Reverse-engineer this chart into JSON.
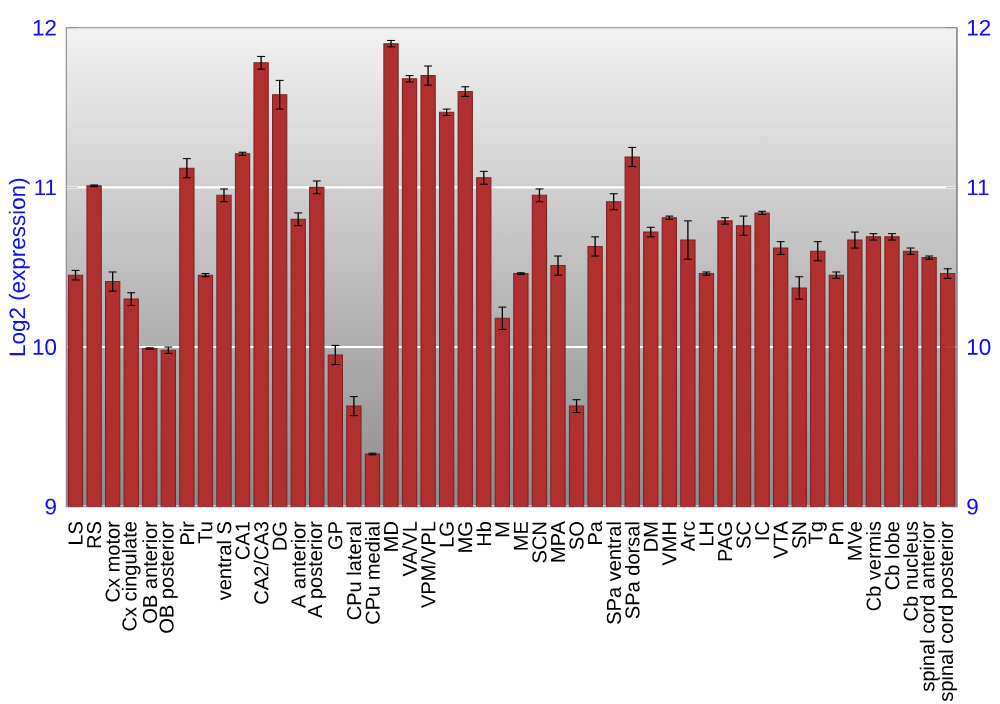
{
  "chart_data": {
    "type": "bar",
    "ylabel": "Log2 (expression)",
    "categories": [
      "LS",
      "RS",
      "Cx motor",
      "Cx cingulate",
      "OB anterior",
      "OB posterior",
      "Pir",
      "Tu",
      "ventral S",
      "CA1",
      "CA2/CA3",
      "DG",
      "A anterior",
      "A posterior",
      "GP",
      "CPu lateral",
      "CPu medial",
      "MD",
      "VA/VL",
      "VPM/VPL",
      "LG",
      "MG",
      "Hb",
      "M",
      "ME",
      "SCN",
      "MPA",
      "SO",
      "Pa",
      "SPa ventral",
      "SPa dorsal",
      "DM",
      "VMH",
      "Arc",
      "LH",
      "PAG",
      "SC",
      "IC",
      "VTA",
      "SN",
      "Tg",
      "Pn",
      "MVe",
      "Cb vermis",
      "Cb lobe",
      "Cb nucleus",
      "spinal cord anterior",
      "spinal cord posterior"
    ],
    "values": [
      10.45,
      11.01,
      10.41,
      10.3,
      9.99,
      9.98,
      11.12,
      10.45,
      10.95,
      11.21,
      11.78,
      11.58,
      10.8,
      11.0,
      9.95,
      9.63,
      9.33,
      11.9,
      11.68,
      11.7,
      11.47,
      11.6,
      11.06,
      10.18,
      10.46,
      10.95,
      10.51,
      9.63,
      10.63,
      10.91,
      11.19,
      10.72,
      10.81,
      10.67,
      10.46,
      10.79,
      10.76,
      10.84,
      10.62,
      10.37,
      10.6,
      10.45,
      10.67,
      10.69,
      10.69,
      10.6,
      10.56,
      10.46
    ],
    "errors": [
      0.03,
      0.005,
      0.06,
      0.04,
      0.005,
      0.02,
      0.06,
      0.01,
      0.04,
      0.01,
      0.04,
      0.09,
      0.04,
      0.04,
      0.06,
      0.06,
      0.005,
      0.02,
      0.02,
      0.06,
      0.02,
      0.03,
      0.04,
      0.07,
      0.005,
      0.04,
      0.06,
      0.04,
      0.06,
      0.05,
      0.06,
      0.03,
      0.01,
      0.12,
      0.01,
      0.02,
      0.06,
      0.01,
      0.04,
      0.07,
      0.06,
      0.02,
      0.05,
      0.02,
      0.02,
      0.02,
      0.01,
      0.03
    ],
    "color": "#b03030",
    "ylim": [
      9,
      12
    ],
    "yticks": [
      9,
      10,
      11,
      12
    ],
    "y2lim": [
      9,
      12
    ],
    "y2ticks": [
      9,
      10,
      11,
      12
    ],
    "grid": "y"
  }
}
